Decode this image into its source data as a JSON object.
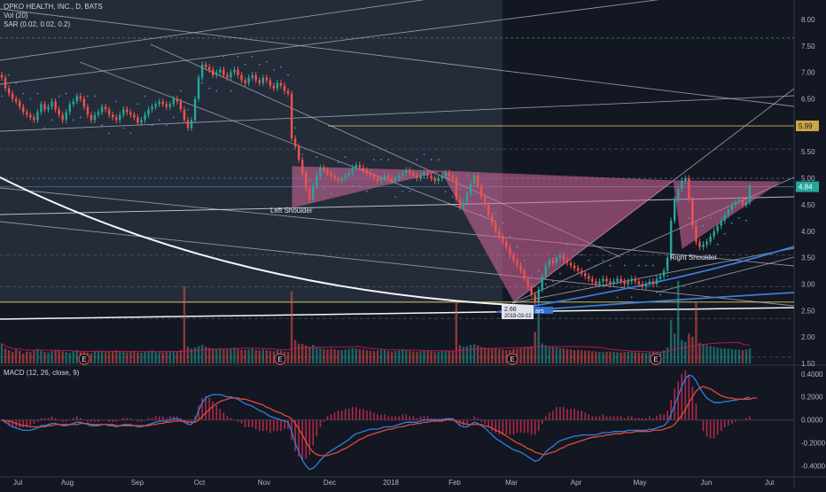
{
  "header": {
    "symbol_line": "OPKO HEALTH, INC., D, BATS",
    "vol_line": "Vol (20)",
    "sar_line": "SAR (0.02, 0.02, 0.2)",
    "macd_line": "MACD (12, 26, close, 9)"
  },
  "colors": {
    "background": "#131722",
    "up": "#26a69a",
    "down": "#ef5350",
    "pattern_fill": "#d86a9e",
    "macd": "#2f7fe0",
    "signal": "#e04a3a",
    "hist": "#b0284a",
    "channel": "#b7bbc4",
    "highlight_zone": "#2a3440"
  },
  "annotations": {
    "left_shoulder": "Left Shoulder",
    "right_shoulder": "Right Shoulder",
    "measure_label": "2.66",
    "measure_date": "2018-03-02",
    "measure_bar": "ars",
    "earnings_marker": "E"
  },
  "price_tags": {
    "current": "4.84",
    "target": "5.99"
  },
  "chart_data": [
    {
      "type": "candlestick",
      "title": "OPKO HEALTH, INC., D, BATS",
      "x_ticks": [
        "Jul",
        "Aug",
        "Sep",
        "Oct",
        "Nov",
        "Dec",
        "2018",
        "Feb",
        "Mar",
        "Apr",
        "May",
        "Jun",
        "Jul"
      ],
      "y_ticks": [
        "1.50",
        "2.00",
        "2.50",
        "3.00",
        "3.50",
        "4.00",
        "4.50",
        "5.00",
        "5.50",
        "6.00",
        "6.50",
        "7.00",
        "7.50",
        "8.00"
      ],
      "ylim": [
        1.5,
        8.2
      ],
      "close": [
        6.9,
        6.7,
        6.6,
        6.5,
        6.45,
        6.35,
        6.25,
        6.2,
        6.15,
        6.1,
        6.25,
        6.4,
        6.3,
        6.35,
        6.45,
        6.3,
        6.2,
        6.1,
        6.25,
        6.4,
        6.45,
        6.55,
        6.5,
        6.35,
        6.2,
        6.1,
        6.2,
        6.25,
        6.35,
        6.3,
        6.2,
        6.15,
        6.1,
        6.2,
        6.3,
        6.25,
        6.2,
        6.15,
        6.05,
        6.1,
        6.2,
        6.3,
        6.35,
        6.4,
        6.45,
        6.4,
        6.35,
        6.4,
        6.5,
        6.45,
        6.3,
        6.1,
        5.95,
        6.1,
        6.5,
        6.9,
        7.15,
        7.1,
        7.05,
        6.95,
        7.0,
        7.05,
        6.95,
        6.9,
        7.0,
        7.05,
        6.95,
        6.85,
        6.8,
        6.9,
        6.95,
        6.85,
        6.8,
        6.9,
        6.85,
        6.75,
        6.7,
        6.8,
        6.75,
        6.65,
        6.6,
        5.75,
        5.6,
        5.35,
        5.1,
        4.8,
        4.6,
        4.85,
        5.05,
        5.2,
        5.15,
        5.1,
        5.05,
        5.0,
        4.95,
        5.0,
        5.05,
        5.1,
        5.2,
        5.25,
        5.2,
        5.15,
        5.1,
        5.05,
        5.0,
        4.95,
        5.0,
        5.05,
        5.0,
        4.95,
        5.0,
        5.05,
        5.1,
        5.15,
        5.1,
        5.05,
        5.0,
        5.05,
        5.1,
        5.05,
        5.0,
        4.95,
        5.0,
        5.05,
        5.1,
        5.05,
        5.0,
        4.6,
        4.45,
        4.55,
        4.7,
        4.9,
        5.05,
        4.85,
        4.65,
        4.5,
        4.3,
        4.15,
        4.0,
        3.9,
        3.8,
        3.7,
        3.55,
        3.45,
        3.35,
        3.25,
        3.1,
        2.95,
        2.8,
        2.66,
        2.9,
        3.15,
        3.35,
        3.45,
        3.4,
        3.5,
        3.55,
        3.45,
        3.4,
        3.35,
        3.3,
        3.25,
        3.2,
        3.15,
        3.1,
        3.05,
        3.0,
        3.05,
        3.1,
        3.05,
        3.0,
        3.05,
        3.1,
        3.05,
        3.0,
        3.05,
        3.1,
        3.05,
        3.0,
        2.95,
        3.0,
        3.05,
        3.0,
        3.1,
        3.15,
        3.25,
        3.5,
        4.2,
        4.6,
        4.8,
        4.95,
        5.0,
        4.6,
        4.1,
        3.8,
        3.7,
        3.75,
        3.8,
        3.9,
        4.0,
        4.1,
        4.2,
        4.3,
        4.4,
        4.5,
        4.55,
        4.6,
        4.5,
        4.55,
        4.84
      ],
      "volume": [
        60,
        45,
        40,
        35,
        42,
        38,
        30,
        36,
        34,
        40,
        44,
        38,
        35,
        33,
        37,
        41,
        39,
        36,
        34,
        32,
        38,
        40,
        36,
        35,
        33,
        31,
        37,
        39,
        36,
        34,
        35,
        38,
        40,
        37,
        35,
        33,
        36,
        38,
        34,
        32,
        35,
        37,
        39,
        36,
        34,
        33,
        35,
        37,
        38,
        36,
        40,
        55,
        50,
        45,
        48,
        52,
        56,
        50,
        47,
        45,
        43,
        46,
        44,
        42,
        45,
        47,
        43,
        41,
        40,
        42,
        44,
        41,
        39,
        42,
        40,
        38,
        37,
        40,
        39,
        36,
        35,
        110,
        70,
        60,
        58,
        54,
        50,
        56,
        48,
        46,
        44,
        42,
        45,
        43,
        41,
        40,
        42,
        44,
        46,
        45,
        43,
        41,
        40,
        38,
        37,
        39,
        41,
        40,
        38,
        36,
        37,
        39,
        41,
        40,
        38,
        36,
        35,
        37,
        39,
        38,
        36,
        34,
        35,
        37,
        39,
        38,
        36,
        62,
        55,
        50,
        52,
        56,
        58,
        54,
        50,
        48,
        46,
        44,
        45,
        43,
        42,
        40,
        41,
        43,
        44,
        46,
        48,
        50,
        52,
        95,
        70,
        60,
        55,
        52,
        50,
        48,
        46,
        45,
        43,
        42,
        40,
        41,
        40,
        39,
        38,
        37,
        36,
        35,
        34,
        35,
        36,
        35,
        34,
        33,
        34,
        35,
        36,
        34,
        33,
        32,
        31,
        33,
        34,
        35,
        36,
        40,
        48,
        130,
        90,
        75,
        70,
        65,
        90,
        80,
        70,
        62,
        58,
        55,
        52,
        50,
        48,
        46,
        45,
        44,
        43,
        42,
        41,
        40,
        42,
        45
      ],
      "vol_highlights": [
        {
          "index": 51,
          "value": 150
        },
        {
          "index": 81,
          "value": 140
        },
        {
          "index": 127,
          "value": 120
        },
        {
          "index": 150,
          "value": 105
        },
        {
          "index": 189,
          "value": 160
        },
        {
          "index": 194,
          "value": 120
        },
        {
          "index": 212,
          "value": 115
        }
      ]
    },
    {
      "type": "line",
      "title": "MACD (12, 26, close, 9)",
      "y_ticks": [
        "0.4000",
        "0.2000",
        "0.0000",
        "-0.2000",
        "-0.4000"
      ],
      "ylim": [
        -0.48,
        0.46
      ],
      "macd": [
        0.0,
        -0.02,
        -0.04,
        -0.06,
        -0.07,
        -0.08,
        -0.09,
        -0.09,
        -0.09,
        -0.08,
        -0.07,
        -0.05,
        -0.05,
        -0.04,
        -0.03,
        -0.03,
        -0.04,
        -0.05,
        -0.05,
        -0.04,
        -0.03,
        -0.02,
        -0.02,
        -0.03,
        -0.04,
        -0.05,
        -0.05,
        -0.05,
        -0.04,
        -0.04,
        -0.05,
        -0.05,
        -0.06,
        -0.05,
        -0.04,
        -0.04,
        -0.04,
        -0.05,
        -0.06,
        -0.06,
        -0.05,
        -0.04,
        -0.03,
        -0.02,
        -0.01,
        -0.01,
        -0.01,
        0.0,
        0.01,
        0.01,
        0.0,
        -0.02,
        -0.04,
        -0.04,
        0.0,
        0.08,
        0.15,
        0.19,
        0.21,
        0.22,
        0.22,
        0.22,
        0.21,
        0.2,
        0.2,
        0.19,
        0.18,
        0.16,
        0.14,
        0.13,
        0.12,
        0.1,
        0.08,
        0.07,
        0.05,
        0.03,
        0.02,
        0.01,
        0.0,
        -0.01,
        -0.02,
        -0.1,
        -0.2,
        -0.28,
        -0.35,
        -0.4,
        -0.43,
        -0.42,
        -0.39,
        -0.35,
        -0.32,
        -0.29,
        -0.27,
        -0.25,
        -0.23,
        -0.21,
        -0.19,
        -0.17,
        -0.14,
        -0.12,
        -0.11,
        -0.1,
        -0.09,
        -0.08,
        -0.08,
        -0.08,
        -0.07,
        -0.06,
        -0.06,
        -0.06,
        -0.05,
        -0.04,
        -0.03,
        -0.02,
        -0.02,
        -0.02,
        -0.02,
        -0.01,
        0.0,
        0.0,
        0.0,
        0.0,
        0.0,
        0.0,
        0.01,
        0.01,
        0.01,
        -0.02,
        -0.05,
        -0.06,
        -0.06,
        -0.04,
        -0.02,
        -0.03,
        -0.05,
        -0.07,
        -0.1,
        -0.13,
        -0.16,
        -0.18,
        -0.2,
        -0.22,
        -0.24,
        -0.26,
        -0.27,
        -0.28,
        -0.3,
        -0.32,
        -0.34,
        -0.36,
        -0.35,
        -0.32,
        -0.28,
        -0.25,
        -0.23,
        -0.2,
        -0.18,
        -0.17,
        -0.16,
        -0.15,
        -0.14,
        -0.14,
        -0.13,
        -0.13,
        -0.13,
        -0.13,
        -0.13,
        -0.12,
        -0.11,
        -0.11,
        -0.11,
        -0.1,
        -0.1,
        -0.1,
        -0.1,
        -0.09,
        -0.09,
        -0.09,
        -0.09,
        -0.09,
        -0.09,
        -0.08,
        -0.08,
        -0.07,
        -0.06,
        -0.05,
        -0.02,
        0.05,
        0.13,
        0.21,
        0.29,
        0.36,
        0.39,
        0.38,
        0.34,
        0.28,
        0.23,
        0.19,
        0.17,
        0.15,
        0.15,
        0.15,
        0.16,
        0.16,
        0.17,
        0.17,
        0.18,
        0.18,
        0.19,
        0.2
      ],
      "signal": [
        0.0,
        -0.01,
        -0.01,
        -0.02,
        -0.03,
        -0.04,
        -0.05,
        -0.05,
        -0.06,
        -0.06,
        -0.06,
        -0.06,
        -0.06,
        -0.05,
        -0.05,
        -0.04,
        -0.04,
        -0.04,
        -0.04,
        -0.04,
        -0.04,
        -0.04,
        -0.03,
        -0.03,
        -0.03,
        -0.04,
        -0.04,
        -0.04,
        -0.04,
        -0.04,
        -0.04,
        -0.04,
        -0.05,
        -0.05,
        -0.05,
        -0.05,
        -0.05,
        -0.05,
        -0.05,
        -0.05,
        -0.05,
        -0.05,
        -0.04,
        -0.04,
        -0.03,
        -0.03,
        -0.02,
        -0.02,
        -0.01,
        -0.01,
        -0.01,
        -0.01,
        -0.02,
        -0.02,
        -0.02,
        0.0,
        0.03,
        0.06,
        0.09,
        0.12,
        0.14,
        0.16,
        0.17,
        0.18,
        0.19,
        0.19,
        0.19,
        0.18,
        0.18,
        0.17,
        0.16,
        0.15,
        0.14,
        0.13,
        0.11,
        0.1,
        0.08,
        0.07,
        0.06,
        0.04,
        0.03,
        0.01,
        -0.03,
        -0.08,
        -0.13,
        -0.19,
        -0.24,
        -0.28,
        -0.3,
        -0.31,
        -0.31,
        -0.31,
        -0.3,
        -0.29,
        -0.28,
        -0.26,
        -0.25,
        -0.23,
        -0.21,
        -0.19,
        -0.17,
        -0.16,
        -0.14,
        -0.13,
        -0.12,
        -0.11,
        -0.1,
        -0.09,
        -0.08,
        -0.08,
        -0.07,
        -0.06,
        -0.06,
        -0.05,
        -0.04,
        -0.04,
        -0.03,
        -0.03,
        -0.02,
        -0.02,
        -0.01,
        -0.01,
        -0.01,
        -0.01,
        0.0,
        0.0,
        0.0,
        -0.01,
        -0.02,
        -0.03,
        -0.04,
        -0.04,
        -0.04,
        -0.04,
        -0.04,
        -0.05,
        -0.06,
        -0.07,
        -0.09,
        -0.1,
        -0.12,
        -0.14,
        -0.16,
        -0.18,
        -0.2,
        -0.21,
        -0.23,
        -0.25,
        -0.26,
        -0.28,
        -0.29,
        -0.3,
        -0.3,
        -0.29,
        -0.28,
        -0.27,
        -0.25,
        -0.24,
        -0.22,
        -0.21,
        -0.2,
        -0.19,
        -0.18,
        -0.17,
        -0.16,
        -0.15,
        -0.15,
        -0.14,
        -0.14,
        -0.13,
        -0.13,
        -0.12,
        -0.12,
        -0.12,
        -0.11,
        -0.11,
        -0.11,
        -0.1,
        -0.1,
        -0.1,
        -0.1,
        -0.1,
        -0.09,
        -0.09,
        -0.09,
        -0.08,
        -0.07,
        -0.06,
        -0.04,
        0.0,
        0.04,
        0.09,
        0.15,
        0.2,
        0.25,
        0.28,
        0.29,
        0.28,
        0.27,
        0.25,
        0.23,
        0.21,
        0.2,
        0.19,
        0.19,
        0.18,
        0.18,
        0.18,
        0.18,
        0.18,
        0.19,
        0.19
      ]
    }
  ]
}
